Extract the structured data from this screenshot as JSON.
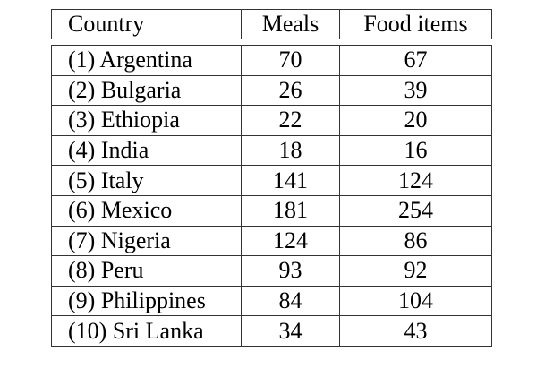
{
  "table": {
    "headers": [
      "Country",
      "Meals",
      "Food items"
    ],
    "rows": [
      {
        "country": "(1) Argentina",
        "meals": "70",
        "food_items": "67"
      },
      {
        "country": "(2) Bulgaria",
        "meals": "26",
        "food_items": "39"
      },
      {
        "country": "(3) Ethiopia",
        "meals": "22",
        "food_items": "20"
      },
      {
        "country": "(4) India",
        "meals": "18",
        "food_items": "16"
      },
      {
        "country": "(5) Italy",
        "meals": "141",
        "food_items": "124"
      },
      {
        "country": "(6) Mexico",
        "meals": "181",
        "food_items": "254"
      },
      {
        "country": "(7) Nigeria",
        "meals": "124",
        "food_items": "86"
      },
      {
        "country": "(8) Peru",
        "meals": "93",
        "food_items": "92"
      },
      {
        "country": "(9) Philippines",
        "meals": "84",
        "food_items": "104"
      },
      {
        "country": "(10) Sri Lanka",
        "meals": "34",
        "food_items": "43"
      }
    ]
  }
}
